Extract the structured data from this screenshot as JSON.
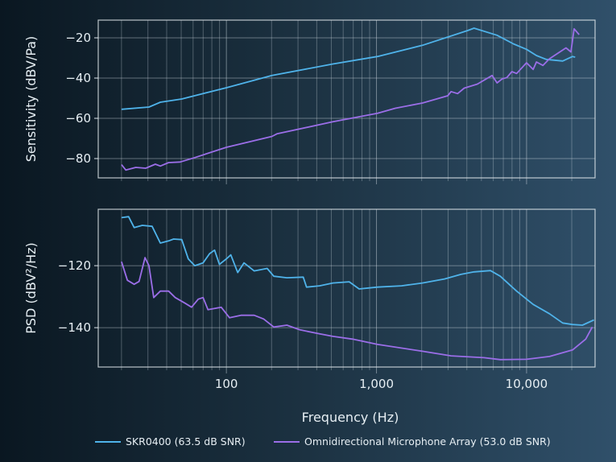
{
  "chart_data": [
    {
      "type": "line",
      "xscale": "log",
      "xlim": [
        14,
        28600
      ],
      "ylim": [
        -89.6,
        -11.2
      ],
      "ylabel": "Sensitivity (dBV/Pa)",
      "xlabel": "",
      "yticks": [
        -20,
        -40,
        -60,
        -80
      ],
      "ytick_labels": [
        "−20",
        "−40",
        "−60",
        "−80"
      ],
      "grid": true,
      "series": [
        {
          "name": "SKR0400 (63.5 dB SNR)",
          "color": "#4fb3ea",
          "x": [
            20,
            30.5,
            36.3,
            50.4,
            100,
            201,
            512,
            1016,
            2024,
            4040,
            4467,
            6360,
            8170,
            10000,
            11640,
            13530,
            17400,
            20240,
            21080
          ],
          "y": [
            -55.5,
            -54.4,
            -52,
            -50.4,
            -44.8,
            -38.7,
            -33,
            -29.3,
            -23.7,
            -16.4,
            -15.2,
            -18.7,
            -23,
            -25.7,
            -28.8,
            -30.7,
            -31.5,
            -29.3,
            -29.6
          ]
        },
        {
          "name": "Omnidirectional Microphone Array (53.0 dB SNR)",
          "color": "#9b6ee8",
          "x": [
            20,
            21.4,
            24.9,
            29,
            33.6,
            36.3,
            41.2,
            49.1,
            60.4,
            100,
            201,
            217,
            512,
            1016,
            1334,
            2024,
            2983,
            3140,
            3470,
            3840,
            4700,
            5890,
            6360,
            6860,
            7390,
            7980,
            8590,
            10000,
            11060,
            11640,
            12860,
            14220,
            18300,
            19740,
            20750,
            22390
          ],
          "y": [
            -83,
            -85.7,
            -84.4,
            -84.8,
            -82.8,
            -83.7,
            -82,
            -81.7,
            -79.7,
            -74.4,
            -69,
            -67.7,
            -61.7,
            -57.5,
            -55,
            -52.4,
            -48.8,
            -46.7,
            -47.7,
            -45,
            -43,
            -38.7,
            -42.4,
            -40.5,
            -39.7,
            -36.8,
            -37.7,
            -32.4,
            -35.7,
            -32,
            -33.7,
            -30.4,
            -25,
            -27,
            -15.5,
            -18.4
          ]
        }
      ]
    },
    {
      "type": "line",
      "xscale": "log",
      "xlim": [
        14,
        28600
      ],
      "ylim": [
        -152.7,
        -101.8
      ],
      "ylabel": "PSD (dBV²/Hz)",
      "xlabel": "Frequency (Hz)",
      "yticks": [
        -120,
        -140
      ],
      "ytick_labels": [
        "−120",
        "−140"
      ],
      "xticks": [
        100,
        1000,
        10000
      ],
      "xtick_labels": [
        "100",
        "1,000",
        "10,000"
      ],
      "grid": true,
      "legend": "bottom",
      "series": [
        {
          "name": "SKR0400 (63.5 dB SNR)",
          "color": "#4fb3ea",
          "x": [
            20,
            22.3,
            24.3,
            27.5,
            32,
            36.3,
            41.2,
            44.5,
            50.4,
            55.7,
            61.6,
            69.9,
            77.3,
            83.4,
            89.9,
            100,
            107,
            119,
            131,
            153,
            187,
            207,
            253,
            325,
            342,
            418,
            512,
            658,
            766,
            1016,
            1472,
            2024,
            2837,
            3650,
            4467,
            5750,
            6680,
            8590,
            11060,
            14220,
            17400,
            20240,
            23550,
            28100
          ],
          "y": [
            -104.5,
            -104.2,
            -107.7,
            -107,
            -107.3,
            -112.7,
            -112,
            -111.4,
            -111.6,
            -117.8,
            -120,
            -119.1,
            -116.1,
            -115,
            -119.6,
            -117.8,
            -116.5,
            -122.2,
            -119.1,
            -121.7,
            -120.9,
            -123.4,
            -123.9,
            -123.7,
            -126.9,
            -126.5,
            -125.6,
            -125.2,
            -127.5,
            -126.9,
            -126.5,
            -125.6,
            -124.3,
            -122.8,
            -122,
            -121.6,
            -123.4,
            -128.2,
            -132.5,
            -135.5,
            -138.5,
            -139,
            -139.2,
            -137.5
          ]
        },
        {
          "name": "Omnidirectional Microphone Array (53.0 dB SNR)",
          "color": "#9b6ee8",
          "x": [
            20,
            21.9,
            24.3,
            26.2,
            28.7,
            30.5,
            32.8,
            36.3,
            41.2,
            45.6,
            53,
            58.6,
            64.9,
            69.9,
            75.4,
            92.3,
            105,
            125,
            153,
            177,
            207,
            253,
            309,
            418,
            512,
            692,
            1016,
            2024,
            3140,
            5200,
            6680,
            10000,
            14220,
            20240,
            24770,
            27400
          ],
          "y": [
            -118.7,
            -124.7,
            -126,
            -125.1,
            -117.4,
            -120,
            -130.3,
            -128.2,
            -128.2,
            -130.3,
            -132.1,
            -133.4,
            -130.8,
            -130.3,
            -134.2,
            -133.4,
            -136.8,
            -136,
            -136,
            -137.2,
            -139.8,
            -139.2,
            -140.7,
            -142,
            -142.8,
            -143.7,
            -145.4,
            -147.6,
            -149.1,
            -149.7,
            -150.3,
            -150.2,
            -149.3,
            -147.2,
            -143.7,
            -139.8
          ]
        }
      ]
    }
  ]
}
